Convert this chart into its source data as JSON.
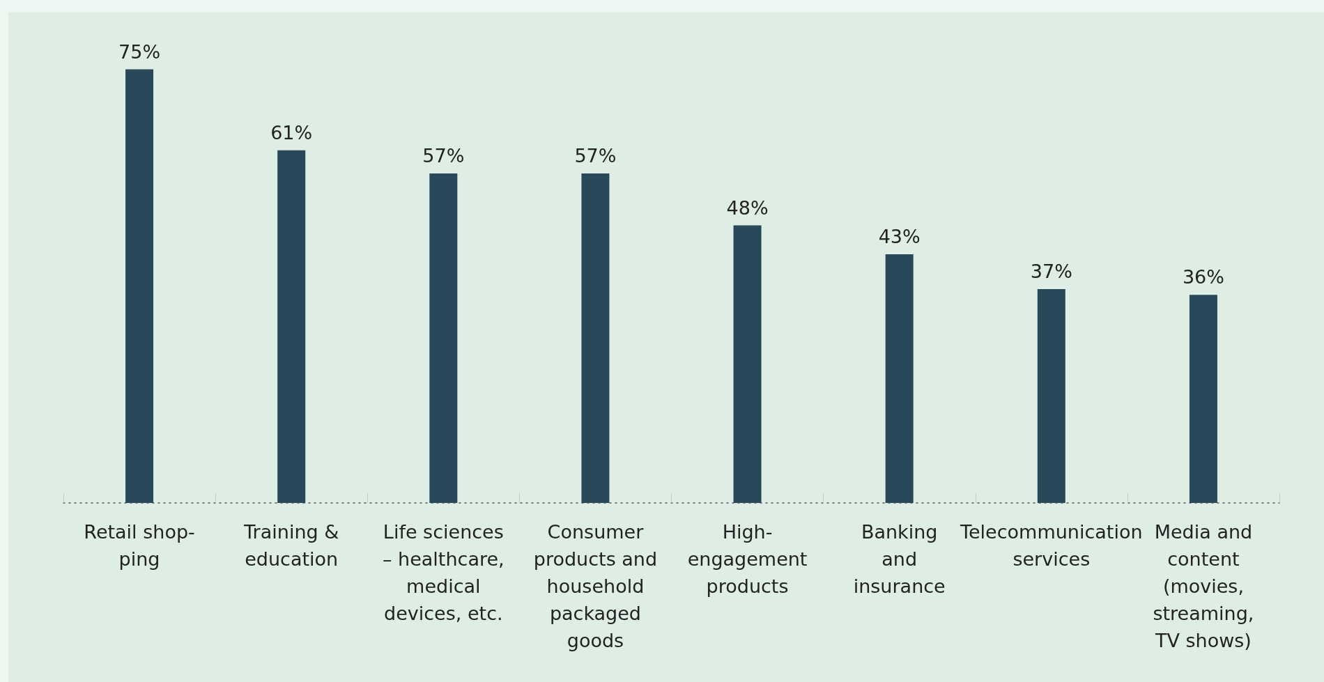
{
  "chart_data": {
    "type": "bar",
    "categories": [
      "Retail shop-\nping",
      "Training &\neducation",
      "Life sciences\n– healthcare,\nmedical\ndevices, etc.",
      "Consumer\nproducts and\nhousehold\npackaged\ngoods",
      "High-\nengagement\nproducts",
      "Banking\nand\ninsurance",
      "Telecommunication\nservices",
      "Media and\ncontent\n(movies,\nstreaming,\nTV shows)"
    ],
    "values": [
      75,
      61,
      57,
      57,
      48,
      43,
      37,
      36
    ],
    "value_labels": [
      "75%",
      "61%",
      "57%",
      "57%",
      "48%",
      "43%",
      "37%",
      "36%"
    ],
    "color": "#29485a"
  }
}
